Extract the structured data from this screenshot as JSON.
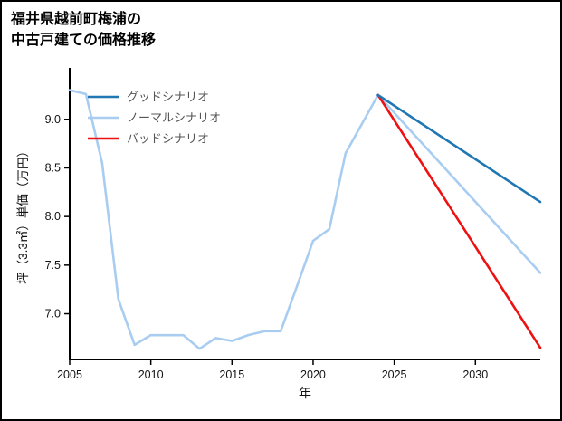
{
  "title": {
    "line1": "福井県越前町梅浦の",
    "line2": "中古戸建ての価格推移"
  },
  "axes": {
    "xlabel": "年",
    "ylabel": "坪（3.3㎡）単価（万円）"
  },
  "colors": {
    "good": "#1f77b4",
    "normal": "#a9cdf0",
    "bad": "#ee1111",
    "axis": "#000000"
  },
  "chart_data": {
    "type": "line",
    "title": "福井県越前町梅浦の中古戸建ての価格推移",
    "xlabel": "年",
    "ylabel": "坪（3.3㎡）単価（万円）",
    "xlim": [
      2005,
      2034
    ],
    "ylim": [
      6.53,
      9.51
    ],
    "x_ticks": [
      2005,
      2010,
      2015,
      2020,
      2025,
      2030
    ],
    "y_ticks": [
      7.0,
      7.5,
      8.0,
      8.5,
      9.0
    ],
    "grid": false,
    "legend_position": "upper-left",
    "legend": [
      {
        "label": "グッドシナリオ",
        "color": "#1f77b4"
      },
      {
        "label": "ノーマルシナリオ",
        "color": "#a9cdf0"
      },
      {
        "label": "バッドシナリオ",
        "color": "#ee1111"
      }
    ],
    "series": [
      {
        "id": "normal-scenario",
        "name": "ノーマルシナリオ",
        "color": "#a9cdf0",
        "x": [
          2005,
          2006,
          2007,
          2008,
          2009,
          2010,
          2011,
          2012,
          2013,
          2014,
          2015,
          2016,
          2017,
          2018,
          2019,
          2020,
          2021,
          2022,
          2023,
          2024,
          2034
        ],
        "y": [
          9.3,
          9.26,
          8.55,
          7.15,
          6.68,
          6.78,
          6.78,
          6.78,
          6.64,
          6.75,
          6.72,
          6.78,
          6.82,
          6.82,
          7.28,
          7.75,
          7.87,
          8.65,
          8.95,
          9.25,
          7.42
        ]
      },
      {
        "id": "bad-scenario",
        "name": "バッドシナリオ",
        "color": "#ee1111",
        "x": [
          2024,
          2034
        ],
        "y": [
          9.25,
          6.65
        ]
      },
      {
        "id": "good-scenario",
        "name": "グッドシナリオ",
        "color": "#1f77b4",
        "x": [
          2024,
          2034
        ],
        "y": [
          9.25,
          8.15
        ]
      }
    ]
  }
}
